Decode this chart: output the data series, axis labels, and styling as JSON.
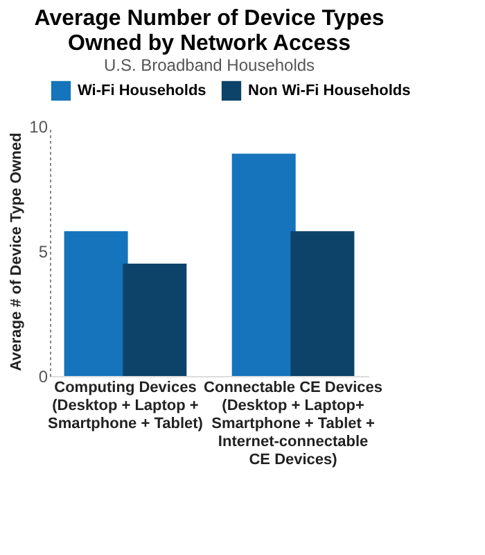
{
  "chart_data": {
    "type": "bar",
    "title": "Average Number of Device Types Owned by Network Access",
    "subtitle": "U.S. Broadband Households",
    "ylabel": "Average # of Device Type Owned",
    "categories": [
      "Computing Devices\n(Desktop + Laptop +\nSmartphone + Tablet)",
      "Connectable CE Devices\n(Desktop + Laptop+\nSmartphone + Tablet +\nInternet-connectable\nCE Devices)"
    ],
    "series": [
      {
        "name": "Wi-Fi Households",
        "color": "#1574bb",
        "values": [
          5.8,
          8.9
        ]
      },
      {
        "name": "Non Wi-Fi Households",
        "color": "#0e4369",
        "values": [
          4.5,
          5.8
        ]
      }
    ],
    "ylim": [
      0,
      10
    ],
    "yticks": [
      0,
      5,
      10
    ],
    "grid": false,
    "legend": "top"
  }
}
